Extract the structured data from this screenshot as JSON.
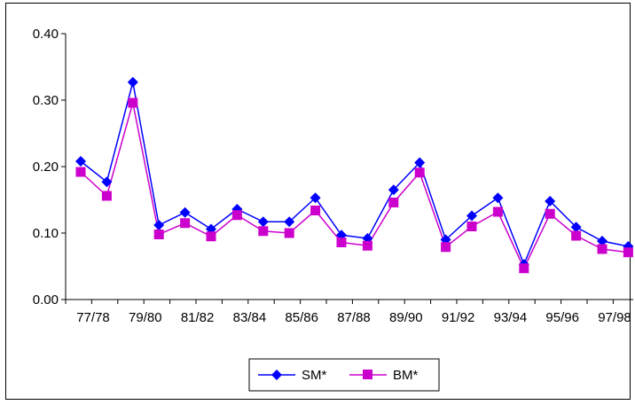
{
  "chart_data": {
    "type": "line",
    "title": "",
    "xlabel": "",
    "ylabel": "",
    "categories": [
      "77/78",
      "78/79",
      "79/80",
      "80/81",
      "81/82",
      "82/83",
      "83/84",
      "84/85",
      "85/86",
      "86/87",
      "87/88",
      "88/89",
      "89/90",
      "90/91",
      "91/92",
      "92/93",
      "93/94",
      "94/95",
      "95/96",
      "96/97",
      "97/98",
      "98/99"
    ],
    "x_tick_labels": [
      "77/78",
      "79/80",
      "81/82",
      "83/84",
      "85/86",
      "87/88",
      "89/90",
      "91/92",
      "93/94",
      "95/96",
      "97/98"
    ],
    "ylim": [
      0,
      0.4
    ],
    "y_ticks": [
      "0.00",
      "0.10",
      "0.20",
      "0.30",
      "0.40"
    ],
    "grid": false,
    "legend_position": "bottom",
    "series": [
      {
        "name": "SM*",
        "color": "#0000ff",
        "marker": "diamond",
        "values": [
          0.208,
          0.177,
          0.327,
          0.112,
          0.131,
          0.106,
          0.136,
          0.117,
          0.117,
          0.153,
          0.097,
          0.092,
          0.165,
          0.206,
          0.09,
          0.126,
          0.153,
          0.053,
          0.148,
          0.109,
          0.088,
          0.08
        ]
      },
      {
        "name": "BM*",
        "color": "#cc00cc",
        "marker": "square",
        "values": [
          0.192,
          0.156,
          0.296,
          0.098,
          0.115,
          0.095,
          0.127,
          0.103,
          0.1,
          0.134,
          0.086,
          0.081,
          0.146,
          0.191,
          0.079,
          0.11,
          0.132,
          0.047,
          0.129,
          0.096,
          0.076,
          0.071
        ]
      }
    ]
  }
}
